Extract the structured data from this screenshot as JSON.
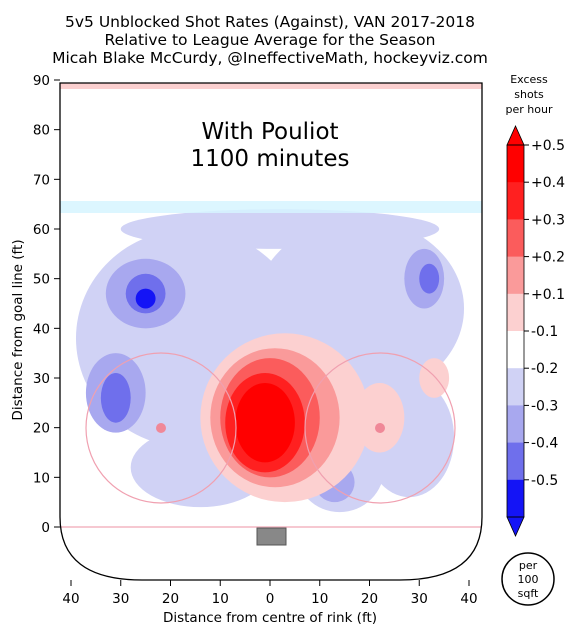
{
  "chart_data": {
    "type": "heatmap",
    "title_lines": [
      "5v5 Unblocked Shot Rates (Against), VAN 2017-2018",
      "Relative to League Average for the Season",
      "Micah Blake McCurdy, @IneffectiveMath, hockeyviz.com"
    ],
    "annotation_lines": [
      "With Pouliot",
      "1100 minutes"
    ],
    "xlabel": "Distance from centre of rink (ft)",
    "ylabel": "Distance from goal line (ft)",
    "xlim": [
      -40,
      40
    ],
    "ylim": [
      0,
      90
    ],
    "x_tick_labels": [
      "40",
      "30",
      "20",
      "10",
      "0",
      "10",
      "20",
      "30",
      "40"
    ],
    "y_ticks": [
      0,
      10,
      20,
      30,
      40,
      50,
      60,
      70,
      80,
      90
    ],
    "grid": false,
    "colorbar": {
      "title_lines": [
        "Excess",
        "shots",
        "per hour"
      ],
      "tick_labels": [
        "+0.5",
        "+0.4",
        "+0.3",
        "+0.2",
        "+0.1",
        "-0.1",
        "-0.2",
        "-0.3",
        "-0.4",
        "-0.5"
      ],
      "bands": [
        {
          "range": [
            0.4,
            0.5
          ],
          "color": "#ff0000"
        },
        {
          "range": [
            0.3,
            0.4
          ],
          "color": "#ff2020"
        },
        {
          "range": [
            0.2,
            0.3
          ],
          "color": "#fb5c5c"
        },
        {
          "range": [
            0.1,
            0.2
          ],
          "color": "#fa9a9a"
        },
        {
          "range": [
            0.0,
            0.1
          ],
          "color": "#fcd0d0"
        },
        {
          "range": [
            -0.1,
            0.0
          ],
          "color": "#ffffff"
        },
        {
          "range": [
            -0.2,
            -0.1
          ],
          "color": "#d0d2f5"
        },
        {
          "range": [
            -0.3,
            -0.2
          ],
          "color": "#a8a8ef"
        },
        {
          "range": [
            -0.4,
            -0.3
          ],
          "color": "#6f6fec"
        },
        {
          "range": [
            -0.5,
            -0.4
          ],
          "color": "#1414f6"
        }
      ]
    },
    "unit_badge_lines": [
      "per",
      "100",
      "sqft"
    ],
    "regions": [
      {
        "level": -0.15,
        "cx": -16,
        "cy": 38,
        "rx": 23,
        "ry": 22
      },
      {
        "level": -0.15,
        "cx": 18,
        "cy": 44,
        "rx": 21,
        "ry": 18
      },
      {
        "level": -0.15,
        "cx": 2,
        "cy": 60,
        "rx": 32,
        "ry": 4
      },
      {
        "level": -0.15,
        "cx": 28,
        "cy": 18,
        "rx": 9,
        "ry": 12
      },
      {
        "level": -0.15,
        "cx": 14,
        "cy": 12,
        "rx": 9,
        "ry": 9
      },
      {
        "level": -0.15,
        "cx": -14,
        "cy": 12,
        "rx": 14,
        "ry": 8
      },
      {
        "level": -0.25,
        "cx": -25,
        "cy": 47,
        "rx": 8,
        "ry": 7
      },
      {
        "level": -0.25,
        "cx": -31,
        "cy": 27,
        "rx": 6,
        "ry": 8
      },
      {
        "level": -0.25,
        "cx": 31,
        "cy": 50,
        "rx": 4,
        "ry": 6
      },
      {
        "level": -0.25,
        "cx": 13,
        "cy": 9,
        "rx": 4,
        "ry": 4
      },
      {
        "level": -0.35,
        "cx": -25,
        "cy": 47,
        "rx": 4,
        "ry": 4
      },
      {
        "level": -0.35,
        "cx": -31,
        "cy": 26,
        "rx": 3,
        "ry": 5
      },
      {
        "level": -0.35,
        "cx": 32,
        "cy": 50,
        "rx": 2,
        "ry": 3
      },
      {
        "level": -0.45,
        "cx": -25,
        "cy": 46,
        "rx": 2,
        "ry": 2
      },
      {
        "level": 0.05,
        "cx": 3,
        "cy": 22,
        "rx": 17,
        "ry": 17
      },
      {
        "level": 0.05,
        "cx": 22,
        "cy": 22,
        "rx": 5,
        "ry": 7
      },
      {
        "level": 0.05,
        "cx": 33,
        "cy": 30,
        "rx": 3,
        "ry": 4
      },
      {
        "level": 0.15,
        "cx": 1,
        "cy": 22,
        "rx": 13,
        "ry": 14
      },
      {
        "level": 0.25,
        "cx": 0,
        "cy": 22,
        "rx": 10,
        "ry": 12
      },
      {
        "level": 0.35,
        "cx": -1,
        "cy": 21,
        "rx": 8,
        "ry": 10
      },
      {
        "level": 0.45,
        "cx": -1,
        "cy": 21,
        "rx": 6,
        "ry": 8
      }
    ]
  }
}
